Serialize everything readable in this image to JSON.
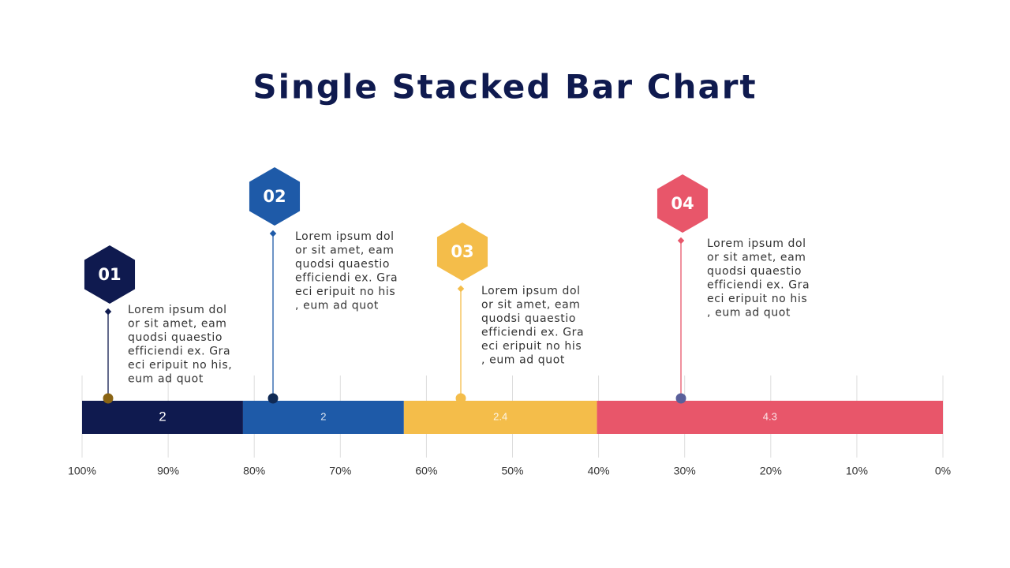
{
  "chart_data": {
    "type": "stacked-bar",
    "title": "Single Stacked Bar Chart",
    "series": [
      {
        "name": "01",
        "color": "#0f1a4f",
        "values": [
          2
        ],
        "text": [
          "Lorem ipsum dol",
          "or sit amet, eam",
          "quodsi quaestio",
          "efficiendi ex. Gra",
          "eci eripuit no his,",
          "eum ad quot"
        ]
      },
      {
        "name": "02",
        "color": "#1e5aa8",
        "values": [
          2
        ],
        "text": [
          "Lorem ipsum dol",
          "or sit amet, eam",
          "quodsi quaestio",
          "efficiendi ex. Gra",
          "eci eripuit no his",
          ", eum ad quot"
        ]
      },
      {
        "name": "03",
        "color": "#f4bd4a",
        "values": [
          2.4
        ],
        "text": [
          "Lorem ipsum dol",
          "or sit amet, eam",
          "quodsi quaestio",
          "efficiendi ex. Gra",
          "eci eripuit no his",
          ", eum ad quot"
        ]
      },
      {
        "name": "04",
        "color": "#e8566a",
        "values": [
          4.3
        ],
        "text": [
          "Lorem ipsum dol",
          "or sit amet, eam",
          "quodsi quaestio",
          "efficiendi ex. Gra",
          "eci eripuit no his",
          ", eum ad quot"
        ]
      }
    ],
    "xlim": [
      100,
      0
    ],
    "xticks": [
      {
        "value": 100,
        "label": "100%"
      },
      {
        "value": 90,
        "label": "90%"
      },
      {
        "value": 80,
        "label": "80%"
      },
      {
        "value": 70,
        "label": "70%"
      },
      {
        "value": 60,
        "label": "60%"
      },
      {
        "value": 50,
        "label": "50%"
      },
      {
        "value": 40,
        "label": "40%"
      },
      {
        "value": 30,
        "label": "30%"
      },
      {
        "value": 20,
        "label": "20%"
      },
      {
        "value": 10,
        "label": "10%"
      },
      {
        "value": 0,
        "label": "0%"
      }
    ],
    "grid": true
  }
}
